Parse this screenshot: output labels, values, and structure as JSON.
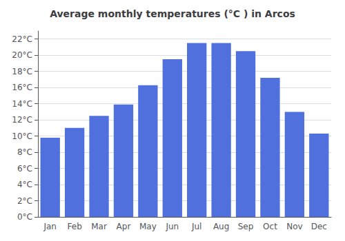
{
  "chart_data": {
    "type": "bar",
    "title": "Average monthly temperatures (°C ) in Arcos",
    "categories": [
      "Jan",
      "Feb",
      "Mar",
      "Apr",
      "May",
      "Jun",
      "Jul",
      "Aug",
      "Sep",
      "Oct",
      "Nov",
      "Dec"
    ],
    "values": [
      9.8,
      11.0,
      12.5,
      13.9,
      16.3,
      19.5,
      21.5,
      21.5,
      20.5,
      17.2,
      13.0,
      10.3
    ],
    "ylim": [
      0,
      23
    ],
    "yticks": [
      {
        "value": 0,
        "label": "0°C"
      },
      {
        "value": 2,
        "label": "2°C"
      },
      {
        "value": 4,
        "label": "4°C"
      },
      {
        "value": 6,
        "label": "6°C"
      },
      {
        "value": 8,
        "label": "8°C"
      },
      {
        "value": 10,
        "label": "10°C"
      },
      {
        "value": 12,
        "label": "12°C"
      },
      {
        "value": 14,
        "label": "14°C"
      },
      {
        "value": 16,
        "label": "16°C"
      },
      {
        "value": 18,
        "label": "18°C"
      },
      {
        "value": 20,
        "label": "20°C"
      },
      {
        "value": 22,
        "label": "22°C"
      }
    ],
    "grid": true
  }
}
